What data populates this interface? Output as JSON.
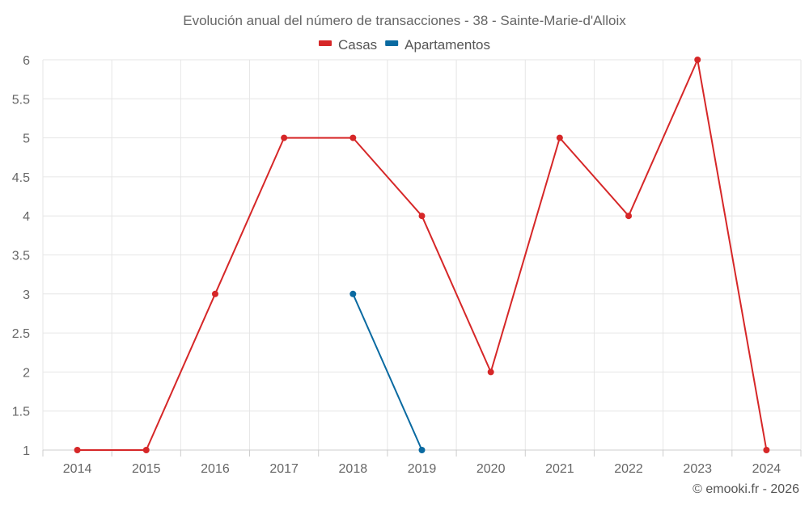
{
  "chart_data": {
    "type": "line",
    "title": "Evolución anual del número de transacciones - 38 - Sainte-Marie-d'Alloix",
    "xlabel": "",
    "ylabel": "",
    "categories": [
      "2014",
      "2015",
      "2016",
      "2017",
      "2018",
      "2019",
      "2020",
      "2021",
      "2022",
      "2023",
      "2024"
    ],
    "ylim": [
      1,
      6
    ],
    "yticks": [
      "1",
      "1.5",
      "2",
      "2.5",
      "3",
      "3.5",
      "4",
      "4.5",
      "5",
      "5.5",
      "6"
    ],
    "grid": true,
    "legend_position": "top-center",
    "series": [
      {
        "name": "Casas",
        "color": "#d62728",
        "values": [
          1,
          1,
          3,
          5,
          5,
          4,
          2,
          5,
          4,
          6,
          1
        ]
      },
      {
        "name": "Apartamentos",
        "color": "#0a6aa1",
        "values": [
          null,
          null,
          null,
          null,
          3,
          1,
          null,
          null,
          null,
          null,
          null
        ]
      }
    ]
  },
  "credit": "© emooki.fr - 2026"
}
